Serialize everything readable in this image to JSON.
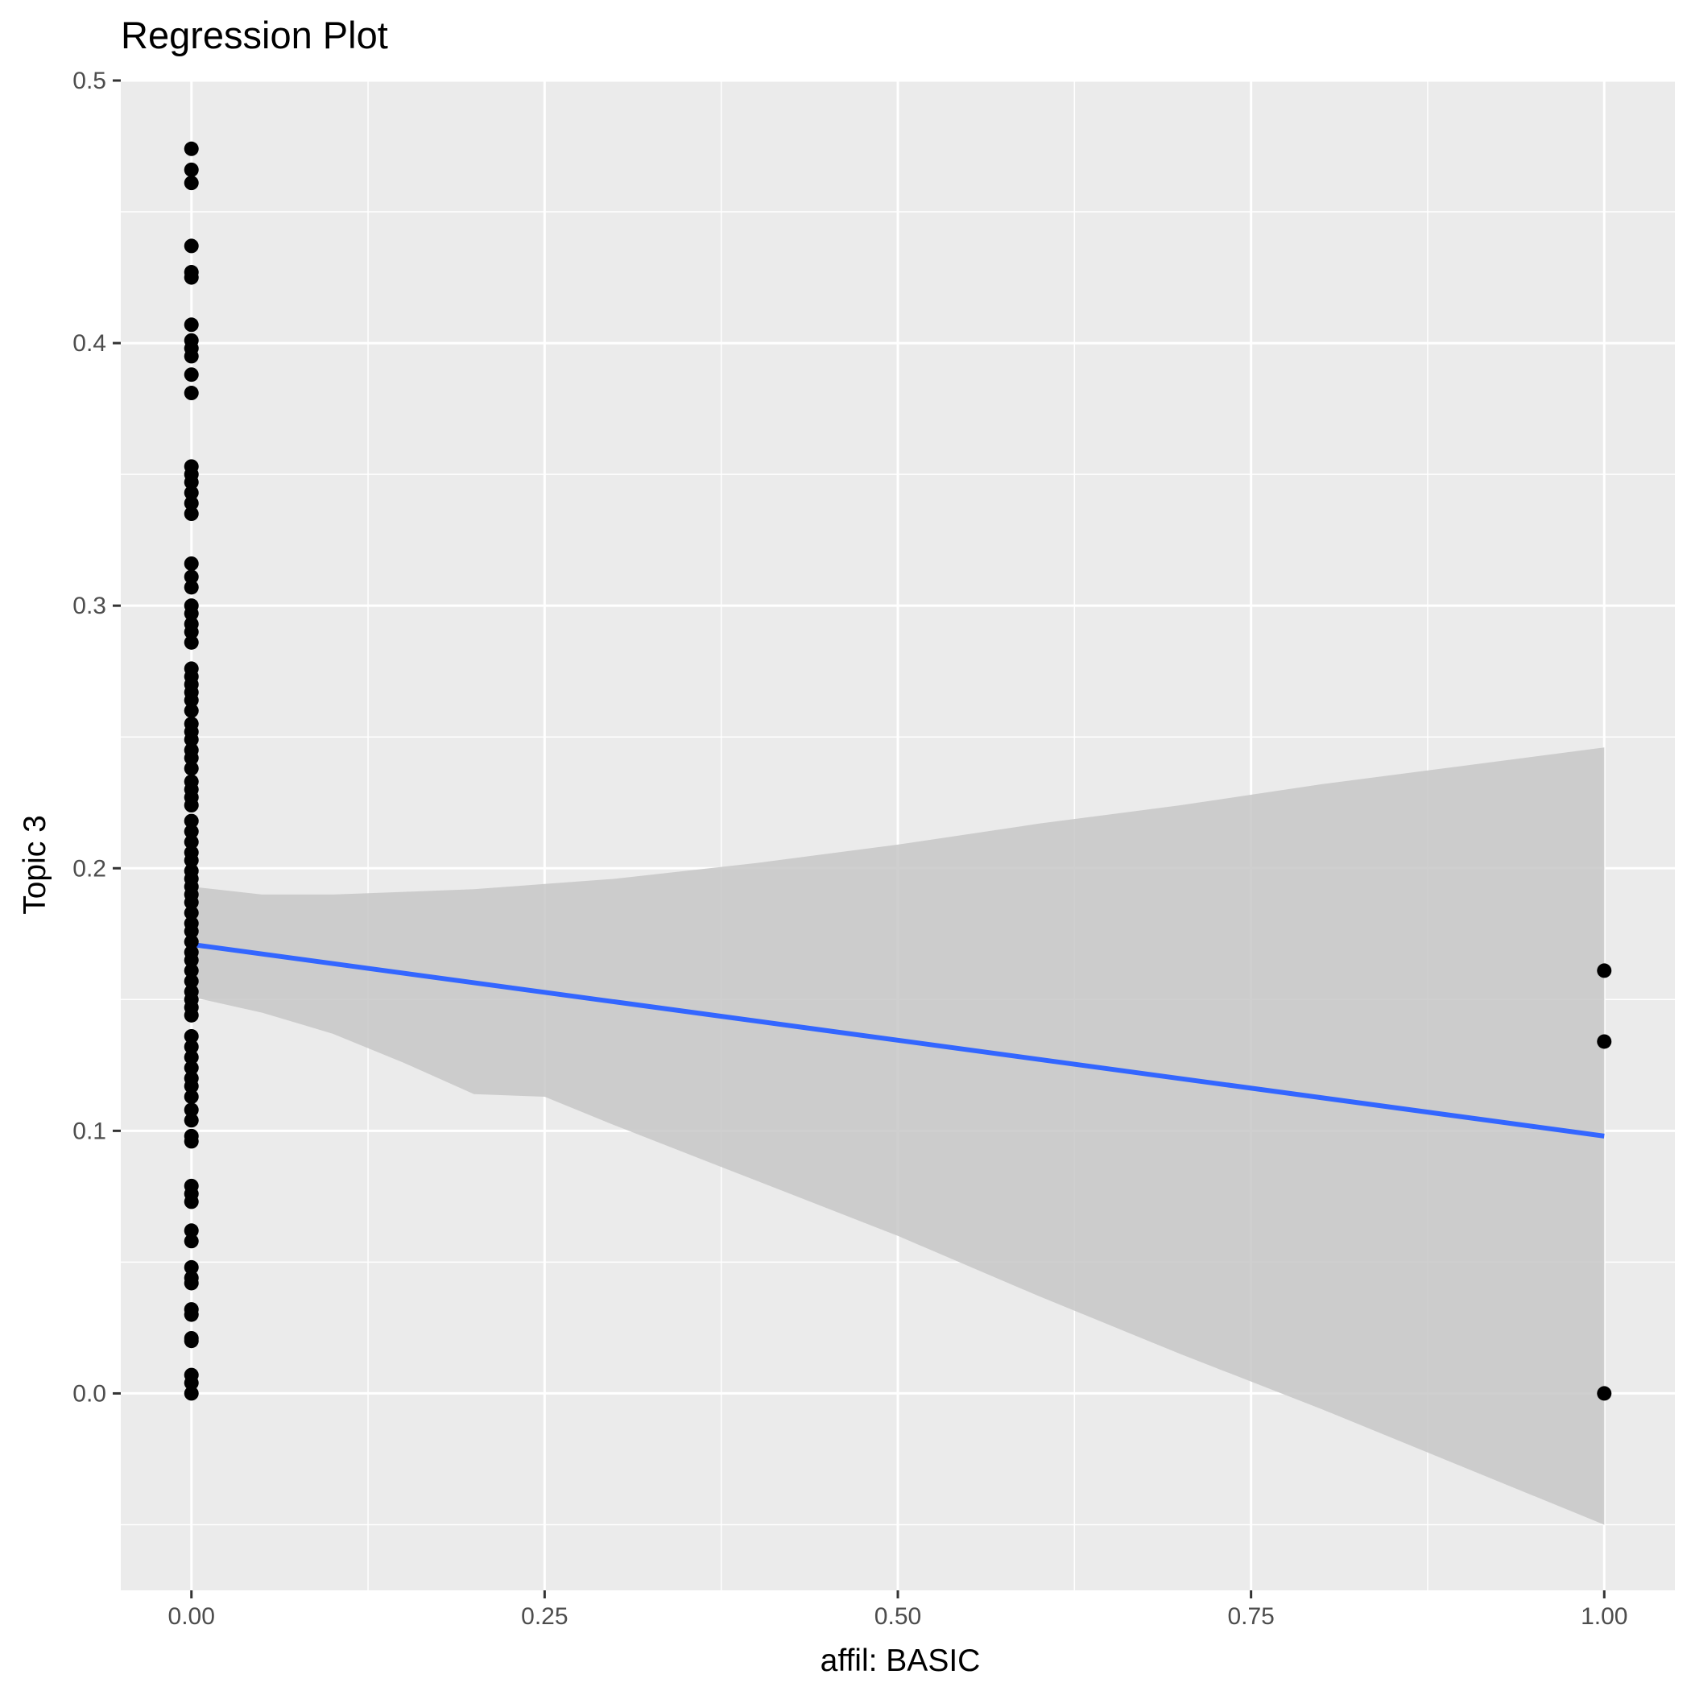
{
  "chart_data": {
    "type": "scatter",
    "title": "Regression Plot",
    "xlabel": "affil: BASIC",
    "ylabel": "Topic 3",
    "xlim": [
      -0.05,
      1.05
    ],
    "ylim": [
      -0.075,
      0.5
    ],
    "x_ticks": [
      "0.00",
      "0.25",
      "0.50",
      "0.75",
      "1.00"
    ],
    "y_ticks": [
      "0.0",
      "0.1",
      "0.2",
      "0.3",
      "0.4",
      "0.5"
    ],
    "grid": true,
    "legend": "none",
    "colors": {
      "panel_background": "#ebebeb",
      "grid": "#ffffff",
      "points": "#000000",
      "fit_line": "#3366ff",
      "confidence_band": "#c7c7c7"
    },
    "points": {
      "x0_y": [
        0.474,
        0.466,
        0.461,
        0.437,
        0.427,
        0.425,
        0.407,
        0.401,
        0.398,
        0.395,
        0.388,
        0.381,
        0.353,
        0.35,
        0.347,
        0.343,
        0.339,
        0.335,
        0.316,
        0.311,
        0.307,
        0.3,
        0.297,
        0.293,
        0.29,
        0.286,
        0.276,
        0.273,
        0.27,
        0.267,
        0.264,
        0.26,
        0.255,
        0.252,
        0.249,
        0.245,
        0.242,
        0.238,
        0.233,
        0.23,
        0.227,
        0.224,
        0.218,
        0.214,
        0.21,
        0.206,
        0.203,
        0.199,
        0.196,
        0.193,
        0.19,
        0.187,
        0.183,
        0.179,
        0.176,
        0.172,
        0.168,
        0.165,
        0.161,
        0.157,
        0.153,
        0.15,
        0.147,
        0.144,
        0.136,
        0.132,
        0.128,
        0.124,
        0.12,
        0.117,
        0.113,
        0.108,
        0.104,
        0.098,
        0.096,
        0.079,
        0.076,
        0.073,
        0.062,
        0.058,
        0.048,
        0.044,
        0.042,
        0.032,
        0.03,
        0.021,
        0.02,
        0.007,
        0.004,
        0.0
      ],
      "x1_y": [
        0.161,
        0.134,
        0.0
      ]
    },
    "fit": {
      "x": [
        0,
        1
      ],
      "y": [
        0.171,
        0.098
      ]
    },
    "confidence_band": {
      "x": [
        0,
        0.05,
        0.1,
        0.15,
        0.2,
        0.25,
        0.3,
        0.4,
        0.5,
        0.6,
        0.7,
        0.8,
        0.9,
        1.0
      ],
      "upper": [
        0.193,
        0.19,
        0.19,
        0.191,
        0.192,
        0.194,
        0.196,
        0.202,
        0.209,
        0.217,
        0.224,
        0.232,
        0.239,
        0.246
      ],
      "lower": [
        0.151,
        0.145,
        0.137,
        0.126,
        0.114,
        0.113,
        0.102,
        0.081,
        0.06,
        0.037,
        0.015,
        -0.006,
        -0.028,
        -0.05
      ]
    }
  }
}
